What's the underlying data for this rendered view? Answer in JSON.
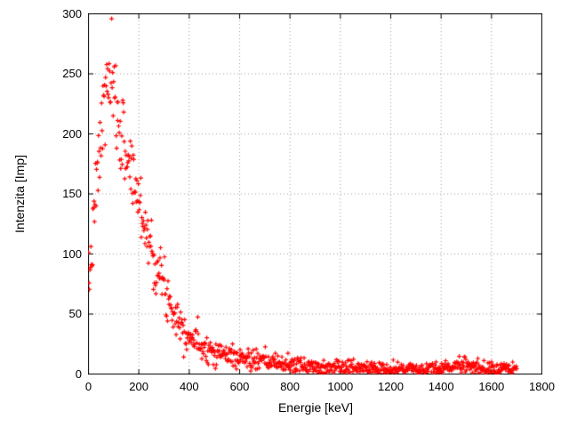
{
  "chart_data": {
    "type": "scatter",
    "title": "",
    "xlabel": "Energie [keV]",
    "ylabel": "Intenzita [Imp]",
    "xlim": [
      0,
      1800
    ],
    "ylim": [
      0,
      300
    ],
    "xticks": [
      0,
      200,
      400,
      600,
      800,
      1000,
      1200,
      1400,
      1600,
      1800
    ],
    "yticks": [
      0,
      50,
      100,
      150,
      200,
      250,
      300
    ],
    "grid": true,
    "grid_style": "dotted",
    "legend": "none",
    "marker": "plus",
    "marker_color": "#ff0000",
    "grid_color": "#999999",
    "border_color": "#000000",
    "series_description": "Gamma spectrum: intensity rises from ~70 Imp at 0 keV to a peak of ~245-270 Imp near 80-90 keV, then decays to ~5 Imp by 800 keV with a flat noisy tail to 1700 keV and a small bump (~8-10 Imp) near 1480 keV",
    "profile_x": [
      0,
      10,
      20,
      30,
      40,
      50,
      60,
      70,
      80,
      90,
      100,
      110,
      120,
      130,
      140,
      160,
      180,
      200,
      220,
      240,
      260,
      280,
      300,
      320,
      340,
      360,
      380,
      400,
      430,
      460,
      500,
      550,
      600,
      650,
      700,
      750,
      800,
      850,
      900,
      1000,
      1100,
      1200,
      1300,
      1350,
      1400,
      1440,
      1480,
      1520,
      1560,
      1600,
      1650,
      1700
    ],
    "profile_mean": [
      72,
      95,
      122,
      152,
      177,
      198,
      218,
      237,
      245,
      240,
      228,
      218,
      208,
      200,
      192,
      178,
      162,
      145,
      128,
      112,
      97,
      85,
      73,
      62,
      53,
      45,
      38,
      32,
      27,
      23,
      19,
      16,
      13.5,
      11.5,
      10,
      9,
      8,
      7,
      6.5,
      5.5,
      5,
      4.5,
      4,
      4.5,
      5,
      6.5,
      8.5,
      7.5,
      5.5,
      4.5,
      4,
      3.5
    ],
    "x_start": 0,
    "x_end": 1700,
    "x_step": 2,
    "noise_scale": 1.25,
    "seed": 7
  }
}
